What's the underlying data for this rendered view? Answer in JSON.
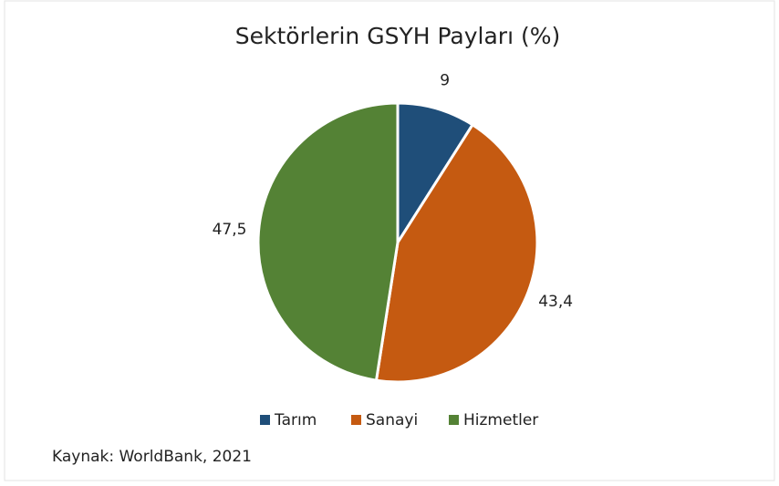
{
  "chart_data": {
    "type": "pie",
    "title": "Sektörlerin GSYH Payları (%)",
    "categories": [
      "Tarım",
      "Sanayi",
      "Hizmetler"
    ],
    "values": [
      9,
      43.4,
      47.5
    ],
    "value_labels": [
      "9",
      "43,4",
      "47,5"
    ],
    "colors": [
      "#1f4e79",
      "#c55a11",
      "#548235"
    ],
    "legend": "bottom",
    "source": "Kaynak: WorldBank, 2021"
  }
}
